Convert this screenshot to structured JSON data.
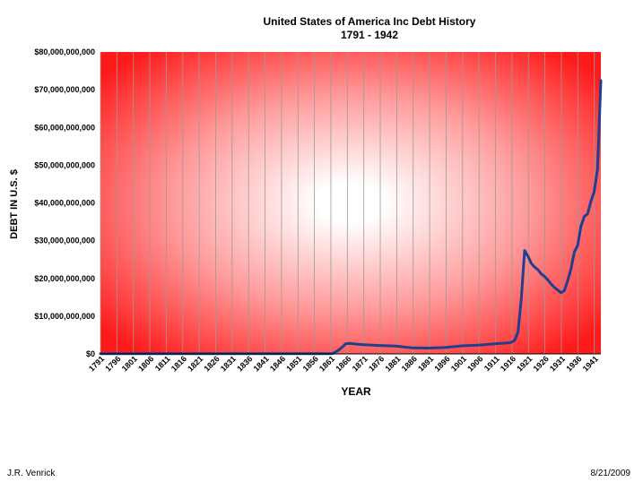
{
  "footer": {
    "author": "J.R. Venrick",
    "date": "8/21/2009"
  },
  "colors": {
    "line": "#1f3f8f",
    "plot_edge": "#ff1a1a",
    "plot_center": "#ffffff",
    "grid": "#9a9a9a"
  },
  "chart_data": {
    "type": "line",
    "title": "United States of America Inc Debt History",
    "subtitle": "1791 - 1942",
    "xlabel": "YEAR",
    "ylabel": "DEBT IN U.S. $",
    "xlim": [
      1791,
      1942
    ],
    "ylim": [
      0,
      80000000000
    ],
    "yticks": [
      0,
      10000000000,
      20000000000,
      30000000000,
      40000000000,
      50000000000,
      60000000000,
      70000000000,
      80000000000
    ],
    "ytick_labels": [
      "$0",
      "$10,000,000,000",
      "$20,000,000,000",
      "$30,000,000,000",
      "$40,000,000,000",
      "$50,000,000,000",
      "$60,000,000,000",
      "$70,000,000,000",
      "$80,000,000,000"
    ],
    "xtick_labels": [
      "1791",
      "1796",
      "1801",
      "1806",
      "1811",
      "1816",
      "1821",
      "1826",
      "1831",
      "1836",
      "1841",
      "1846",
      "1851",
      "1856",
      "1861",
      "1866",
      "1871",
      "1876",
      "1881",
      "1886",
      "1891",
      "1896",
      "1901",
      "1906",
      "1911",
      "1916",
      "1921",
      "1926",
      "1931",
      "1936",
      "1941"
    ],
    "grid": "vertical",
    "legend": "none",
    "series": [
      {
        "x": [
          1791,
          1830,
          1860,
          1861,
          1862,
          1863,
          1864,
          1865,
          1866,
          1868,
          1870,
          1875,
          1880,
          1885,
          1890,
          1895,
          1900,
          1905,
          1910,
          1914,
          1915,
          1916,
          1917,
          1918,
          1919,
          1920,
          1921,
          1922,
          1923,
          1924,
          1925,
          1926,
          1927,
          1928,
          1929,
          1930,
          1931,
          1932,
          1933,
          1934,
          1935,
          1936,
          1937,
          1938,
          1939,
          1940,
          1941,
          1942
        ],
        "y": [
          80000000,
          50000000,
          65000000,
          90000000,
          520000000,
          1120000000,
          1820000000,
          2680000000,
          2770000000,
          2610000000,
          2480000000,
          2230000000,
          2090000000,
          1580000000,
          1550000000,
          1680000000,
          2140000000,
          2300000000,
          2650000000,
          2910000000,
          3060000000,
          3610000000,
          5720000000,
          14600000000,
          27400000000,
          25900000000,
          24000000000,
          23000000000,
          22300000000,
          21200000000,
          20500000000,
          19600000000,
          18500000000,
          17600000000,
          16900000000,
          16200000000,
          16800000000,
          19400000000,
          22500000000,
          27000000000,
          28700000000,
          33800000000,
          36400000000,
          37100000000,
          40400000000,
          43000000000,
          49000000000,
          72400000000
        ]
      }
    ]
  }
}
